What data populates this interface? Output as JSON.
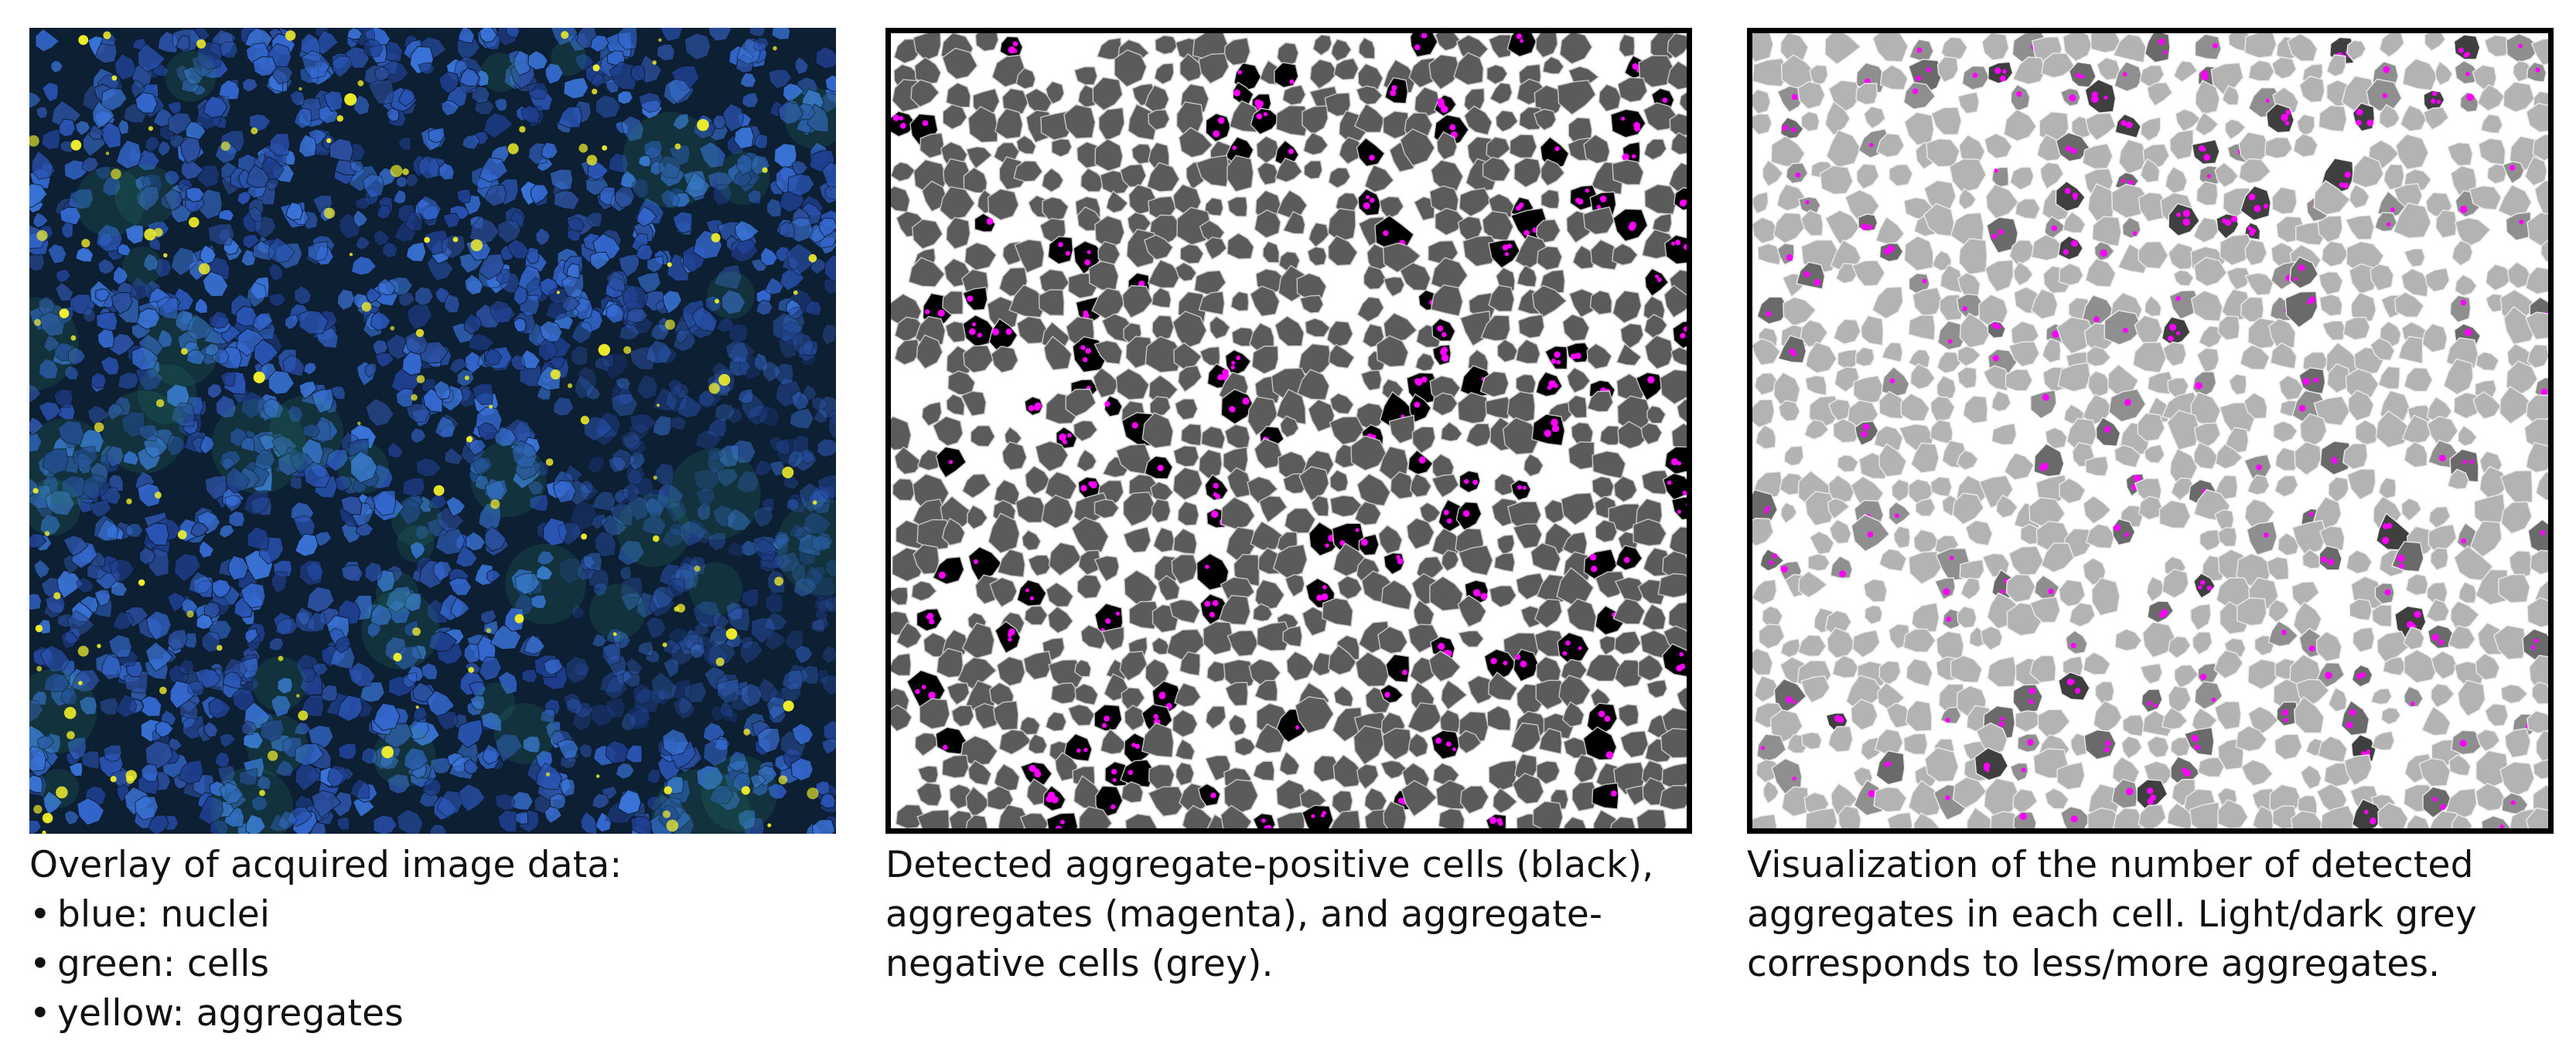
{
  "panels": [
    {
      "id": "overlay",
      "caption_title": "Overlay of acquired image data:",
      "legend_items": [
        {
          "bullet": "•",
          "text": "blue: nuclei",
          "color": "#2f61c9"
        },
        {
          "bullet": "•",
          "text": "green: cells",
          "color": "#3ea46a"
        },
        {
          "bullet": "•",
          "text": "yellow: aggregates",
          "color": "#f2ef2a"
        }
      ],
      "palette": {
        "background": "#0d1f33",
        "nuclei": [
          "#1f3f8f",
          "#2a54b3",
          "#3468cf",
          "#2b4f9e",
          "#3a74d8"
        ],
        "cell_glow": "#2f8d73",
        "aggregate": "#f2ef2a"
      }
    },
    {
      "id": "detected",
      "caption_lines": [
        "Detected aggregate-positive cells (black),",
        "aggregates (magenta), and aggregate-",
        "negative cells (grey)."
      ],
      "palette": {
        "negative_cell": "#5b5b5b",
        "positive_cell": "#000000",
        "aggregate": "#ff00ff",
        "cell_outline": "#c8c8c8"
      }
    },
    {
      "id": "count",
      "caption_lines": [
        "Visualization of the number of detected",
        "aggregates in each cell. Light/dark grey",
        "corresponds to less/more aggregates."
      ],
      "palette": {
        "levels": [
          "#b3b3b3",
          "#8f8f8f",
          "#6a6a6a",
          "#3f3f3f"
        ],
        "aggregate": "#ff00ff",
        "cell_outline": "#ececec"
      }
    }
  ]
}
